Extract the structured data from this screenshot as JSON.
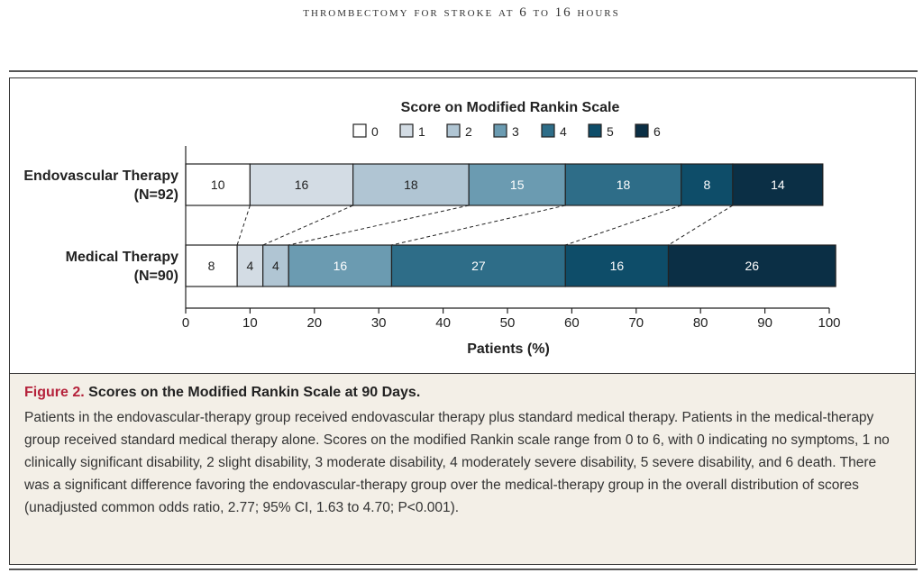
{
  "running_head": "THROMBECTOMY FOR STROKE AT 6 TO 16 HOURS",
  "colors": {
    "score_0": "#ffffff",
    "score_1": "#d3dce4",
    "score_2": "#b0c5d3",
    "score_3": "#6b9bb1",
    "score_4": "#2e6d88",
    "score_5": "#0e4d69",
    "score_6": "#0b2f45"
  },
  "chart_data": {
    "type": "bar",
    "orientation": "horizontal-stacked",
    "legend_title": "Score on Modified Rankin Scale",
    "legend_placement": "top",
    "legend": [
      "0",
      "1",
      "2",
      "3",
      "4",
      "5",
      "6"
    ],
    "categories": [
      {
        "name": "Endovascular Therapy",
        "n_label": "(N=92)"
      },
      {
        "name": "Medical Therapy",
        "n_label": "(N=90)"
      }
    ],
    "series": [
      {
        "name": "0",
        "values": [
          10,
          8
        ]
      },
      {
        "name": "1",
        "values": [
          16,
          4
        ]
      },
      {
        "name": "2",
        "values": [
          18,
          4
        ]
      },
      {
        "name": "3",
        "values": [
          15,
          16
        ]
      },
      {
        "name": "4",
        "values": [
          18,
          27
        ]
      },
      {
        "name": "5",
        "values": [
          8,
          16
        ]
      },
      {
        "name": "6",
        "values": [
          14,
          26
        ]
      }
    ],
    "xlabel": "Patients (%)",
    "xlim": [
      0,
      100
    ],
    "xticks": [
      0,
      10,
      20,
      30,
      40,
      50,
      60,
      70,
      80,
      90,
      100
    ],
    "grid": false,
    "connector_lines": true
  },
  "caption": {
    "fig_label": "Figure 2.",
    "title": "Scores on the Modified Rankin Scale at 90 Days.",
    "body": "Patients in the endovascular-therapy group received endovascular therapy plus standard medical therapy. Patients in the medical-therapy group received standard medical therapy alone. Scores on the modified Rankin scale range from 0 to 6, with 0 indicating no symptoms, 1 no clinically significant disability, 2 slight disability, 3 moderate disability, 4 moderately severe disability, 5 severe disability, and 6 death. There was a significant difference favoring the endovascular-therapy group over the medical-therapy group in the overall distribution of scores (unadjusted common odds ratio, 2.77; 95% CI, 1.63 to 4.70; P<0.001)."
  }
}
